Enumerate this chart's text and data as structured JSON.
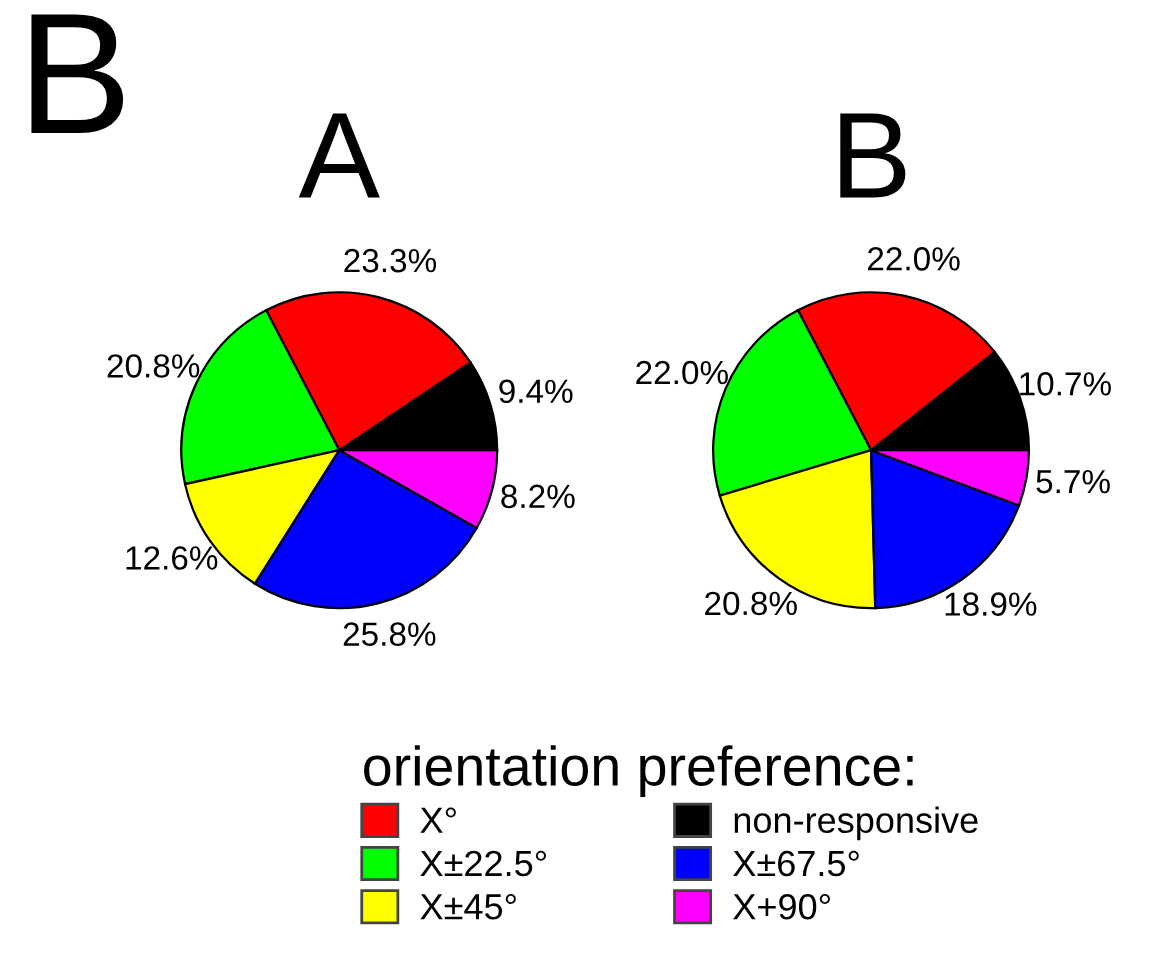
{
  "chart_data": [
    {
      "type": "pie",
      "title": "A",
      "annotations": [
        "B"
      ],
      "legend": "bottom",
      "legend_title": "orientation preference:",
      "categories": [
        "non-responsive",
        "X°",
        "X±22.5°",
        "X±45°",
        "X±67.5°",
        "X+90°"
      ],
      "values": [
        9.4,
        23.3,
        20.8,
        12.6,
        25.8,
        8.2
      ],
      "value_labels": [
        "9.4%",
        "23.3%",
        "20.8%",
        "12.6%",
        "25.8%",
        "8.2%"
      ],
      "colors": [
        "#000000",
        "#ff0000",
        "#00ff00",
        "#ffff00",
        "#0000ff",
        "#ff00ff"
      ]
    },
    {
      "type": "pie",
      "title": "B",
      "values": [
        10.7,
        22.0,
        22.0,
        20.8,
        18.9,
        5.7
      ],
      "value_labels": [
        "10.7%",
        "22.0%",
        "22.0%",
        "20.8%",
        "18.9%",
        "5.7%"
      ],
      "colors": [
        "#000000",
        "#ff0000",
        "#00ff00",
        "#ffff00",
        "#0000ff",
        "#ff00ff"
      ]
    }
  ]
}
